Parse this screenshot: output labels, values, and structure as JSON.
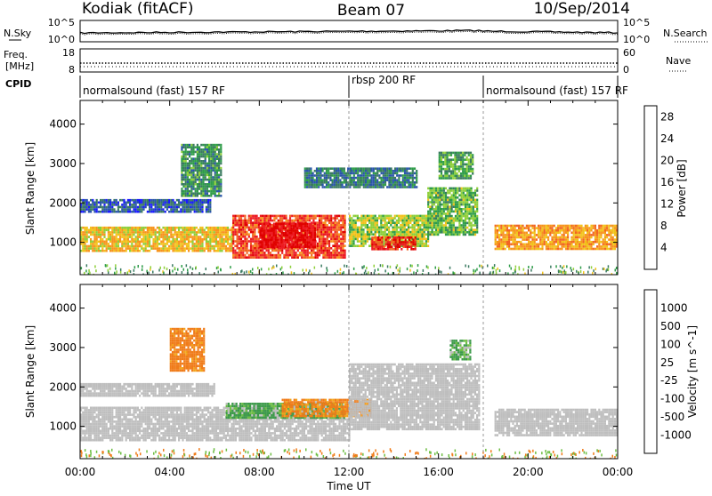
{
  "header": {
    "left": "Kodiak (fitACF)",
    "center": "Beam 07",
    "right": "10/Sep/2014"
  },
  "top_panel": {
    "left_label": "N.Sky",
    "right_label": "N.Search",
    "left_ticks": [
      "10^5",
      "10^0"
    ],
    "right_ticks": [
      "10^5",
      "10^0"
    ]
  },
  "freq_panel": {
    "left_label_line1": "Freq.",
    "left_label_line2": "[MHz]",
    "right_label": "Nave",
    "left_ticks": [
      "18",
      "8"
    ],
    "right_ticks": [
      "60",
      "0"
    ]
  },
  "cpid": {
    "label": "CPID",
    "segments": [
      {
        "label": "normalsound (fast) 157 RF",
        "start_hour": 0,
        "end_hour": 12
      },
      {
        "label": "rbsp 200 RF",
        "start_hour": 12,
        "end_hour": 18
      },
      {
        "label": "normalsound (fast) 157 RF",
        "start_hour": 18,
        "end_hour": 24
      }
    ]
  },
  "x_axis": {
    "label": "Time UT",
    "ticks": [
      "00:00",
      "04:00",
      "08:00",
      "12:00",
      "16:00",
      "20:00",
      "00:00"
    ]
  },
  "colors": {
    "power_scale": [
      "#1a1aff",
      "#2a55aa",
      "#3a7a60",
      "#2e9c48",
      "#8ecf3a",
      "#f2c21b",
      "#f7941d",
      "#f26522",
      "#ed1c24",
      "#e00000"
    ],
    "velocity_scale": [
      "#e41a1c",
      "#ff3b1b",
      "#f07c1a",
      "#f2a31c",
      "#bebebe",
      "#bebebe",
      "#6ebe44",
      "#3c9a4a",
      "#3b8fb0",
      "#2a4bd7"
    ]
  },
  "chart_data": [
    {
      "type": "heatmap",
      "name": "power",
      "ylabel": "Slant Range [km]",
      "yticks": [
        1000,
        2000,
        3000,
        4000
      ],
      "ylim": [
        180,
        4600
      ],
      "xlim_hours": [
        0,
        24
      ],
      "colorbar": {
        "label": "Power [dB]",
        "ticks": [
          4,
          8,
          12,
          16,
          20,
          24,
          28
        ],
        "range": [
          0,
          30
        ]
      },
      "bands": [
        {
          "t0": 0.0,
          "t1": 6.8,
          "r0": 800,
          "r1": 1400,
          "value": 17
        },
        {
          "t0": 6.8,
          "t1": 11.8,
          "r0": 600,
          "r1": 1700,
          "value": 24
        },
        {
          "t0": 8.0,
          "t1": 10.5,
          "r0": 900,
          "r1": 1500,
          "value": 28
        },
        {
          "t0": 12.0,
          "t1": 15.5,
          "r0": 900,
          "r1": 1700,
          "value": 14
        },
        {
          "t0": 13.0,
          "t1": 15.0,
          "r0": 850,
          "r1": 1150,
          "value": 26
        },
        {
          "t0": 15.5,
          "t1": 17.7,
          "r0": 1200,
          "r1": 2400,
          "value": 12
        },
        {
          "t0": 18.5,
          "t1": 24.0,
          "r0": 850,
          "r1": 1450,
          "value": 19
        },
        {
          "t0": 0.0,
          "t1": 5.8,
          "r0": 1800,
          "r1": 2100,
          "value": 5
        },
        {
          "t0": 4.5,
          "t1": 6.3,
          "r0": 2200,
          "r1": 3500,
          "value": 9
        },
        {
          "t0": 10.0,
          "t1": 15.0,
          "r0": 2400,
          "r1": 2900,
          "value": 7
        },
        {
          "t0": 16.0,
          "t1": 17.5,
          "r0": 2600,
          "r1": 3300,
          "value": 11
        }
      ]
    },
    {
      "type": "heatmap",
      "name": "velocity",
      "ylabel": "Slant Range [km]",
      "yticks": [
        1000,
        2000,
        3000,
        4000
      ],
      "ylim": [
        180,
        4600
      ],
      "xlim_hours": [
        0,
        24
      ],
      "colorbar": {
        "label": "Velocity [m s^-1]",
        "ticks": [
          1000,
          500,
          100,
          25,
          -25,
          -100,
          -500,
          -1000
        ]
      },
      "bands": [
        {
          "t0": 0.0,
          "t1": 12.0,
          "r0": 650,
          "r1": 1500,
          "value": 0
        },
        {
          "t0": 0.0,
          "t1": 6.0,
          "r0": 1750,
          "r1": 2100,
          "value": 0
        },
        {
          "t0": 6.5,
          "t1": 11.8,
          "r0": 1200,
          "r1": 1600,
          "value": 150
        },
        {
          "t0": 9.0,
          "t1": 13.0,
          "r0": 1250,
          "r1": 1700,
          "value": -150
        },
        {
          "t0": 12.0,
          "t1": 17.8,
          "r0": 900,
          "r1": 2600,
          "value": 0
        },
        {
          "t0": 18.5,
          "t1": 24.0,
          "r0": 800,
          "r1": 1450,
          "value": 0
        },
        {
          "t0": 4.0,
          "t1": 5.5,
          "r0": 2400,
          "r1": 3500,
          "value": -200
        },
        {
          "t0": 16.5,
          "t1": 17.4,
          "r0": 2700,
          "r1": 3200,
          "value": 120
        }
      ]
    }
  ]
}
